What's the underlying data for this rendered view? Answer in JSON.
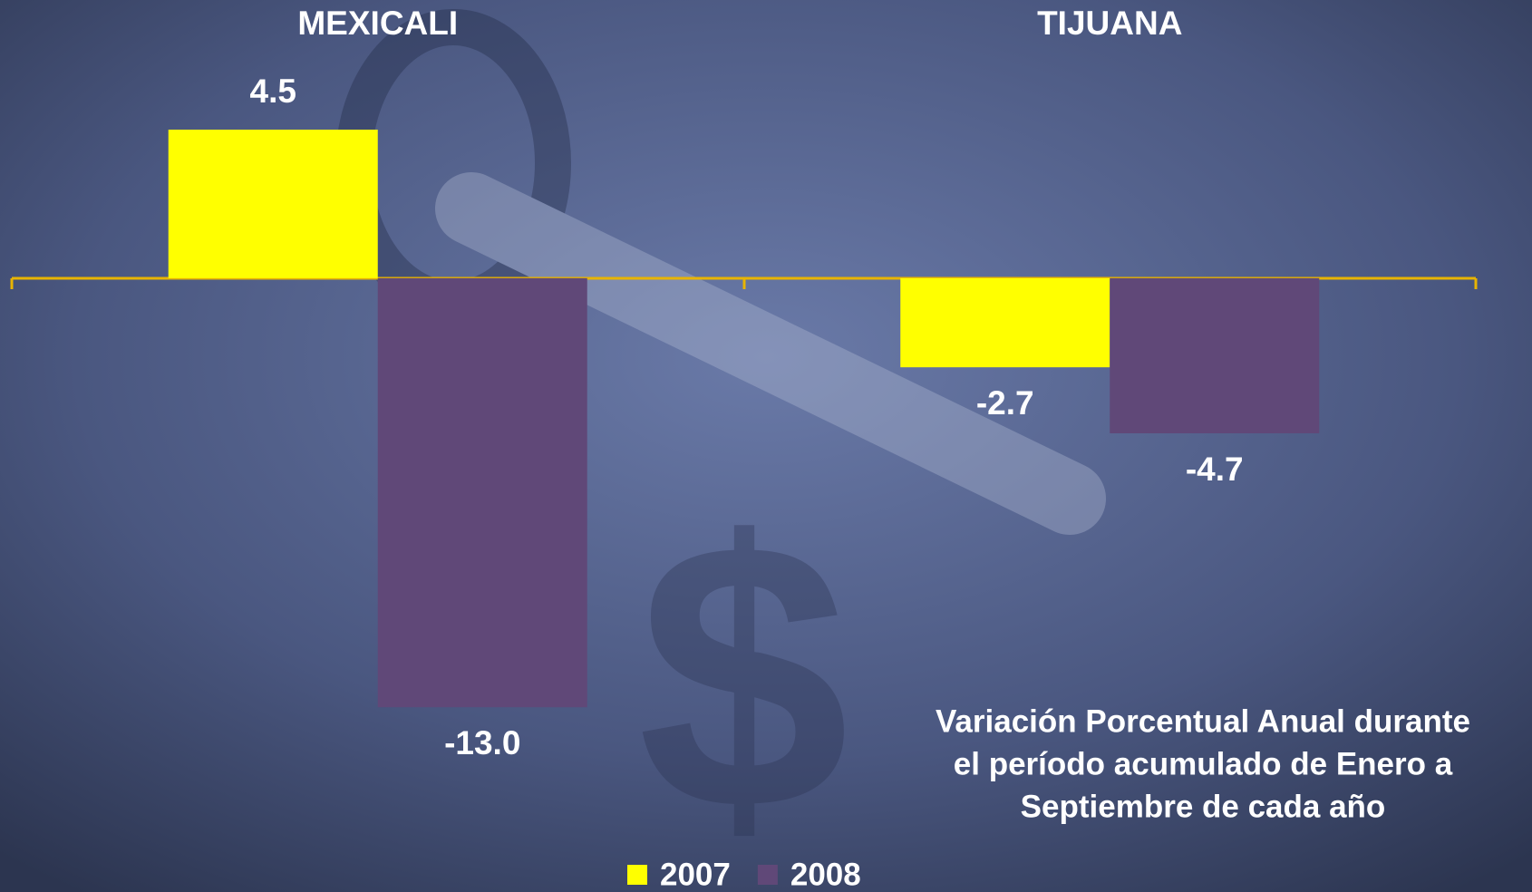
{
  "chart_data": {
    "type": "bar",
    "categories": [
      "MEXICALI",
      "TIJUANA"
    ],
    "series": [
      {
        "name": "2007",
        "color": "#ffff00",
        "values": [
          4.5,
          -2.7
        ],
        "value_labels": [
          "4.5",
          "-2.7"
        ]
      },
      {
        "name": "2008",
        "color": "#604878",
        "values": [
          -13.0,
          -4.7
        ],
        "value_labels": [
          "-13.0",
          "-4.7"
        ]
      }
    ],
    "ylim": [
      -15,
      7
    ],
    "annotation": [
      "Variación Porcentual Anual durante",
      "el período acumulado de Enero a",
      "Septiembre de cada año"
    ],
    "legend": "bottom"
  }
}
